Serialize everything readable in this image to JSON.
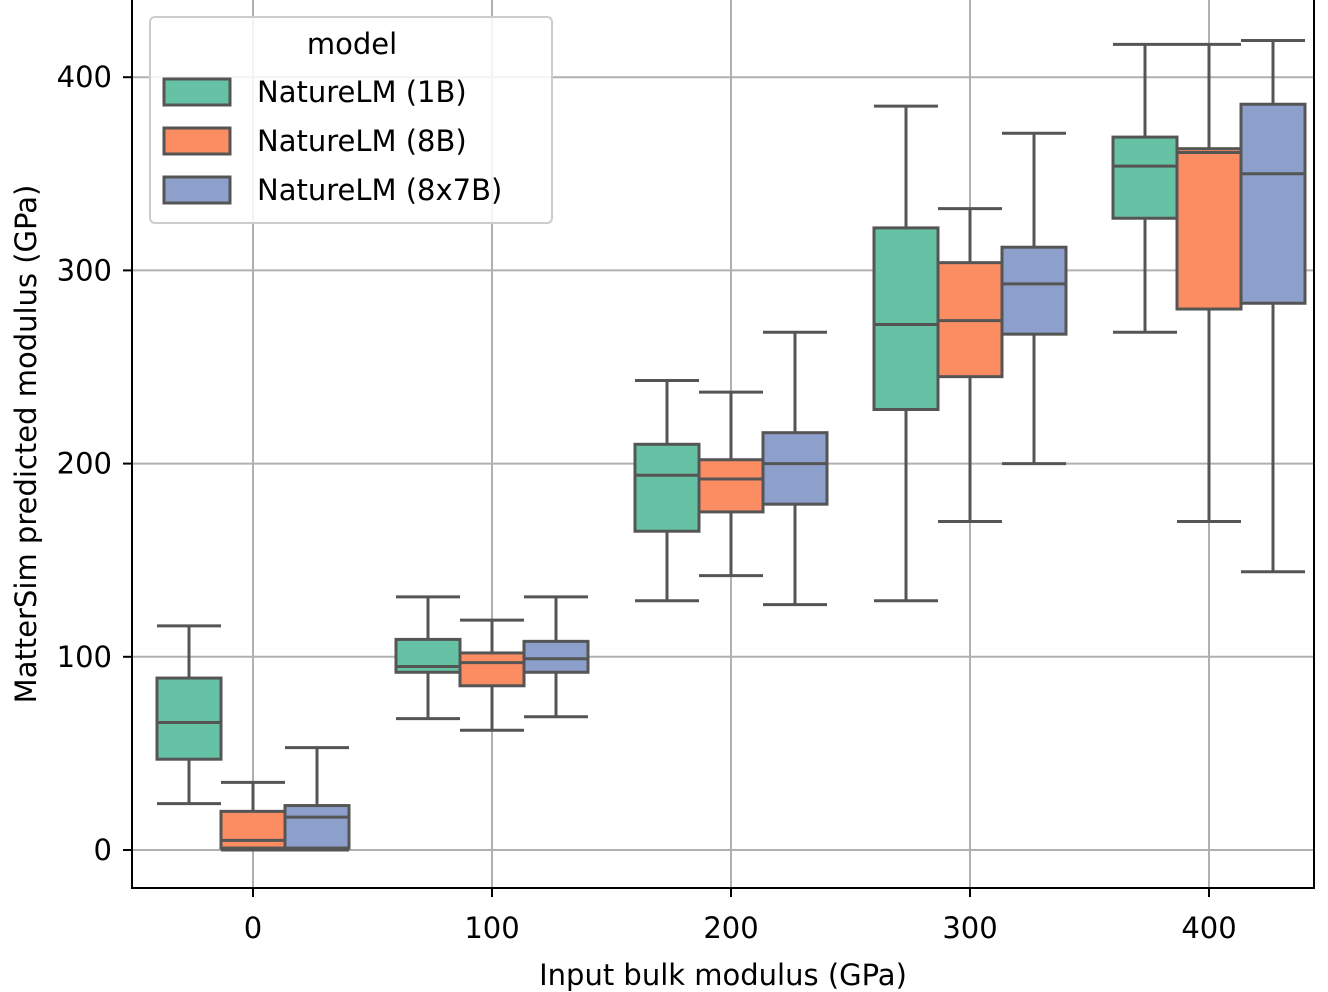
{
  "chart_data": {
    "type": "boxplot",
    "title": "",
    "xlabel": "Input bulk modulus (GPa)",
    "ylabel": "MatterSim predicted modulus (GPa)",
    "categories": [
      "0",
      "100",
      "200",
      "300",
      "400"
    ],
    "x_ticks": [
      0,
      100,
      200,
      300,
      400
    ],
    "y_ticks": [
      0,
      100,
      200,
      300,
      400
    ],
    "y_tick_labels": [
      "0",
      "100",
      "200",
      "300",
      "400"
    ],
    "ylim": [
      -20,
      435
    ],
    "grid": true,
    "legend": {
      "title": "model",
      "position": "top-left"
    },
    "series": [
      {
        "name": "NatureLM (1B)",
        "color": "#66c2a5",
        "boxes": [
          {
            "whisker_low": 24,
            "q1": 47,
            "median": 66,
            "q3": 89,
            "whisker_high": 116
          },
          {
            "whisker_low": 68,
            "q1": 92,
            "median": 95,
            "q3": 109,
            "whisker_high": 131
          },
          {
            "whisker_low": 129,
            "q1": 165,
            "median": 194,
            "q3": 210,
            "whisker_high": 243
          },
          {
            "whisker_low": 129,
            "q1": 228,
            "median": 272,
            "q3": 322,
            "whisker_high": 385
          },
          {
            "whisker_low": 268,
            "q1": 327,
            "median": 354,
            "q3": 369,
            "whisker_high": 417
          }
        ]
      },
      {
        "name": "NatureLM (8B)",
        "color": "#fc8d62",
        "boxes": [
          {
            "whisker_low": 0,
            "q1": 1,
            "median": 5,
            "q3": 20,
            "whisker_high": 35
          },
          {
            "whisker_low": 62,
            "q1": 85,
            "median": 97,
            "q3": 102,
            "whisker_high": 119
          },
          {
            "whisker_low": 142,
            "q1": 175,
            "median": 192,
            "q3": 202,
            "whisker_high": 237
          },
          {
            "whisker_low": 170,
            "q1": 245,
            "median": 274,
            "q3": 304,
            "whisker_high": 332
          },
          {
            "whisker_low": 170,
            "q1": 280,
            "median": 361,
            "q3": 363,
            "whisker_high": 417
          }
        ]
      },
      {
        "name": "NatureLM (8x7B)",
        "color": "#8da0cb",
        "boxes": [
          {
            "whisker_low": 0,
            "q1": 1,
            "median": 17,
            "q3": 23,
            "whisker_high": 53
          },
          {
            "whisker_low": 69,
            "q1": 92,
            "median": 99,
            "q3": 108,
            "whisker_high": 131
          },
          {
            "whisker_low": 127,
            "q1": 179,
            "median": 200,
            "q3": 216,
            "whisker_high": 268
          },
          {
            "whisker_low": 200,
            "q1": 267,
            "median": 293,
            "q3": 312,
            "whisker_high": 371
          },
          {
            "whisker_low": 144,
            "q1": 283,
            "median": 350,
            "q3": 386,
            "whisker_high": 419
          }
        ]
      }
    ]
  }
}
